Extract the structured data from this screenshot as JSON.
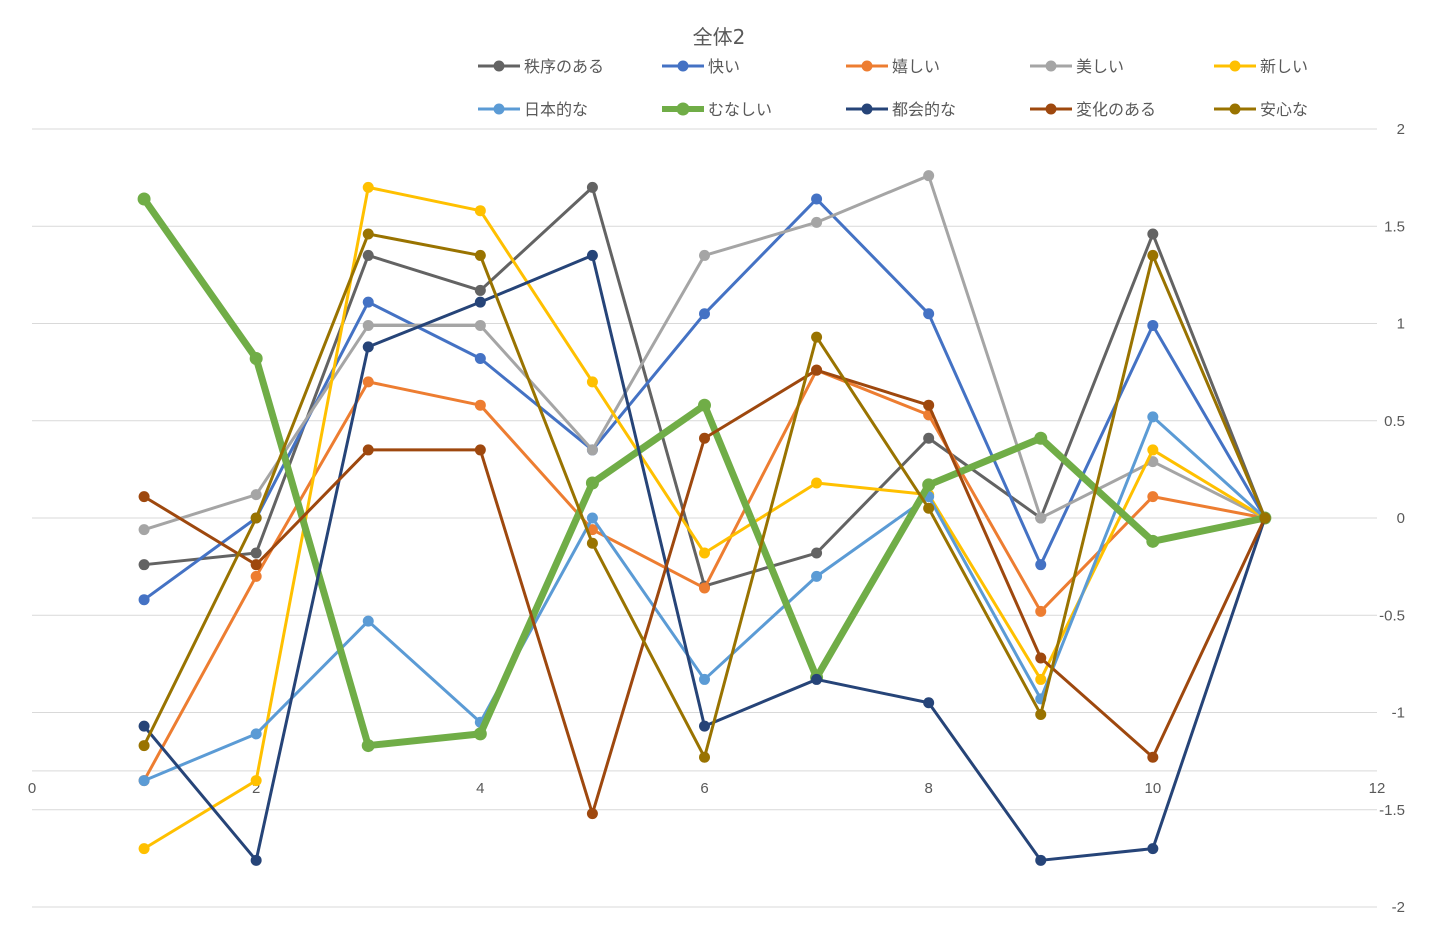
{
  "chart_data": {
    "type": "scatter",
    "title": "全体2",
    "legend_position": "top",
    "grid": true,
    "x_axis": {
      "min": 0,
      "max": 12,
      "ticks": [
        0,
        2,
        4,
        6,
        8,
        10,
        12
      ],
      "crosses_at_y": -1.3
    },
    "y_axis": {
      "min": -2,
      "max": 2,
      "position": "right",
      "ticks": [
        -2,
        -1.5,
        -1,
        -0.5,
        0,
        0.5,
        1,
        1.5,
        2
      ]
    },
    "x": [
      1,
      2,
      3,
      4,
      5,
      6,
      7,
      8,
      9,
      10,
      11
    ],
    "series": [
      {
        "name": "秩序のある",
        "color": "#636363",
        "width": 3,
        "values": [
          -0.24,
          -0.18,
          1.35,
          1.17,
          1.7,
          -0.35,
          -0.18,
          0.41,
          0.0,
          1.46,
          0.0
        ]
      },
      {
        "name": "快い",
        "color": "#4472C4",
        "width": 3,
        "values": [
          -0.42,
          0.0,
          1.11,
          0.82,
          0.35,
          1.05,
          1.64,
          1.05,
          -0.24,
          0.99,
          0.0
        ]
      },
      {
        "name": "嬉しい",
        "color": "#ED7D31",
        "width": 3,
        "values": [
          -1.35,
          -0.3,
          0.7,
          0.58,
          -0.06,
          -0.36,
          0.76,
          0.53,
          -0.48,
          0.11,
          0.0
        ]
      },
      {
        "name": "美しい",
        "color": "#A5A5A5",
        "width": 3,
        "values": [
          -0.06,
          0.12,
          0.99,
          0.99,
          0.35,
          1.35,
          1.52,
          1.76,
          0.0,
          0.29,
          0.0
        ]
      },
      {
        "name": "新しい",
        "color": "#FFC000",
        "width": 3,
        "values": [
          -1.7,
          -1.35,
          1.7,
          1.58,
          0.7,
          -0.18,
          0.18,
          0.12,
          -0.83,
          0.35,
          0.0
        ]
      },
      {
        "name": "日本的な",
        "color": "#5B9BD5",
        "width": 3,
        "values": [
          -1.35,
          -1.11,
          -0.53,
          -1.05,
          0.0,
          -0.83,
          -0.3,
          0.11,
          -0.93,
          0.52,
          0.0
        ]
      },
      {
        "name": "むなしい",
        "color": "#70AD47",
        "width": 7,
        "values": [
          1.64,
          0.82,
          -1.17,
          -1.11,
          0.18,
          0.58,
          -0.82,
          0.17,
          0.41,
          -0.12,
          0.0
        ]
      },
      {
        "name": "都会的な",
        "color": "#264478",
        "width": 3,
        "values": [
          -1.07,
          -1.76,
          0.88,
          1.11,
          1.35,
          -1.07,
          -0.83,
          -0.95,
          -1.76,
          -1.7,
          0.0
        ]
      },
      {
        "name": "変化のある",
        "color": "#9E480E",
        "width": 3,
        "values": [
          0.11,
          -0.24,
          0.35,
          0.35,
          -1.52,
          0.41,
          0.76,
          0.58,
          -0.72,
          -1.23,
          0.0
        ]
      },
      {
        "name": "安心な",
        "color": "#997300",
        "width": 3,
        "values": [
          -1.17,
          0.0,
          1.46,
          1.35,
          -0.13,
          -1.23,
          0.93,
          0.05,
          -1.01,
          1.35,
          0.0
        ]
      }
    ]
  }
}
